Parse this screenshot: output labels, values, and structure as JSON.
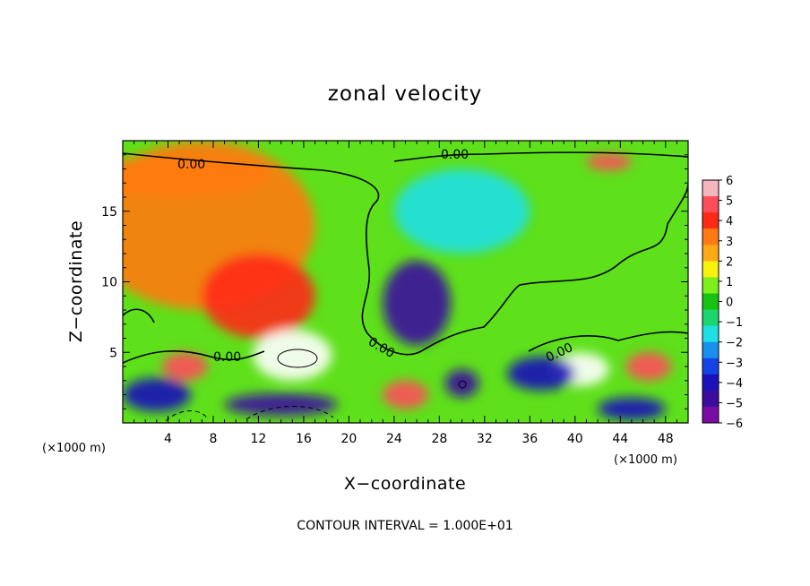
{
  "chart_data": {
    "type": "heatmap",
    "title": "zonal velocity",
    "xlabel": "X−coordinate",
    "ylabel": "Z−coordinate",
    "x_unit_label": "(×1000 m)",
    "y_unit_label": "(×1000 m)",
    "xlim": [
      0,
      50
    ],
    "ylim": [
      0,
      20
    ],
    "x_ticks": [
      4,
      8,
      12,
      16,
      20,
      24,
      28,
      32,
      36,
      40,
      44,
      48
    ],
    "y_ticks": [
      5,
      10,
      15
    ],
    "colorbar": {
      "levels": [
        6,
        5,
        4,
        3,
        2,
        1,
        0,
        -1,
        -2,
        -3,
        -4,
        -5,
        -6
      ],
      "labels": [
        "6",
        "5",
        "4",
        "3",
        "2",
        "1",
        "0",
        "−1",
        "−2",
        "−3",
        "−4",
        "−5",
        "−6"
      ],
      "colors": [
        "#f4b6bc",
        "#ff4e5a",
        "#ff2a16",
        "#ff7a12",
        "#ffa914",
        "#f8f20c",
        "#7cf01a",
        "#17c212",
        "#1ad66c",
        "#1ee0e4",
        "#1890ee",
        "#1444e6",
        "#1a12b8",
        "#3c0c9c",
        "#7a0ca6"
      ]
    },
    "contour_labels": [
      "0.00",
      "0.00",
      "0.00",
      "0.00",
      "0.00"
    ],
    "fields": [
      {
        "x": 7,
        "z": 14,
        "value": 3.2,
        "rx": 10,
        "rz": 6
      },
      {
        "x": 12,
        "z": 9,
        "value": 4.5,
        "rx": 5,
        "rz": 3
      },
      {
        "x": 5,
        "z": 17.5,
        "value": 3.5,
        "rx": 8,
        "rz": 1.5
      },
      {
        "x": 26,
        "z": 8.5,
        "value": -5.5,
        "rx": 3,
        "rz": 3
      },
      {
        "x": 30,
        "z": 15,
        "value": -1.5,
        "rx": 6,
        "rz": 3
      },
      {
        "x": 15,
        "z": 4.8,
        "value": 7,
        "rx": 3.5,
        "rz": 1.8
      },
      {
        "x": 5.5,
        "z": 4,
        "value": 5.5,
        "rx": 2,
        "rz": 1
      },
      {
        "x": 40.5,
        "z": 3.8,
        "value": 6.5,
        "rx": 2.5,
        "rz": 1.2
      },
      {
        "x": 46.5,
        "z": 4,
        "value": 5,
        "rx": 2,
        "rz": 1
      },
      {
        "x": 30,
        "z": 2.8,
        "value": -5.5,
        "rx": 1.5,
        "rz": 1
      },
      {
        "x": 25,
        "z": 2,
        "value": 5,
        "rx": 2,
        "rz": 1
      },
      {
        "x": 3,
        "z": 2,
        "value": -4.5,
        "rx": 3,
        "rz": 1.2
      },
      {
        "x": 14,
        "z": 1.3,
        "value": -5,
        "rx": 5,
        "rz": 0.8
      },
      {
        "x": 37,
        "z": 3.5,
        "value": -4,
        "rx": 3,
        "rz": 1.2
      },
      {
        "x": 43,
        "z": 18.5,
        "value": 5,
        "rx": 2,
        "rz": 0.6
      },
      {
        "x": 45,
        "z": 1,
        "value": -4.5,
        "rx": 3,
        "rz": 0.8
      }
    ]
  },
  "footer": {
    "contour_interval": "CONTOUR INTERVAL = 1.000E+01"
  }
}
